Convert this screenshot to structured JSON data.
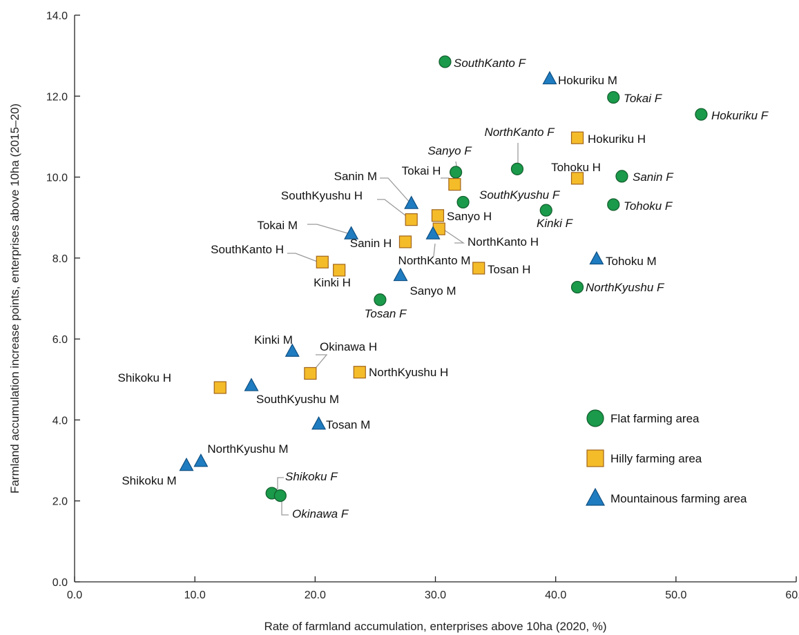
{
  "chart_data": {
    "type": "scatter",
    "xlabel": "Rate of farmland accumulation, enterprises above 10ha (2020, %)",
    "ylabel": "Farmland accumulation increase points, enterprises above 10ha (2015–20)",
    "xlim": [
      0,
      60
    ],
    "ylim": [
      0,
      14
    ],
    "xticks": [
      "0.0",
      "10.0",
      "20.0",
      "30.0",
      "40.0",
      "50.0",
      "60.0"
    ],
    "yticks": [
      "0.0",
      "2.0",
      "4.0",
      "6.0",
      "8.0",
      "10.0",
      "12.0",
      "14.0"
    ],
    "grid": false,
    "legend_position": "bottom-right",
    "series": [
      {
        "name": "Flat farming area",
        "marker": "circle",
        "color": "#1a9a4a",
        "label_style": "italic",
        "points": [
          {
            "label": "SouthKanto F",
            "x": 30.8,
            "y": 12.85
          },
          {
            "label": "Tokai F",
            "x": 44.8,
            "y": 11.97
          },
          {
            "label": "Hokuriku F",
            "x": 52.1,
            "y": 11.55
          },
          {
            "label": "NorthKanto F",
            "x": 36.8,
            "y": 10.2
          },
          {
            "label": "Sanyo F",
            "x": 31.7,
            "y": 10.12
          },
          {
            "label": "Sanin F",
            "x": 45.5,
            "y": 10.02
          },
          {
            "label": "SouthKyushu F",
            "x": 32.3,
            "y": 9.38
          },
          {
            "label": "Tohoku F",
            "x": 44.8,
            "y": 9.32
          },
          {
            "label": "Kinki F",
            "x": 39.2,
            "y": 9.18
          },
          {
            "label": "NorthKyushu F",
            "x": 41.8,
            "y": 7.28
          },
          {
            "label": "Tosan F",
            "x": 25.4,
            "y": 6.97
          },
          {
            "label": "Shikoku F",
            "x": 16.4,
            "y": 2.19
          },
          {
            "label": "Okinawa F",
            "x": 17.1,
            "y": 2.13
          }
        ]
      },
      {
        "name": "Hilly farming area",
        "marker": "square",
        "color": "#f5bc2a",
        "label_style": "normal",
        "points": [
          {
            "label": "Hokuriku H",
            "x": 41.8,
            "y": 10.97
          },
          {
            "label": "Tohoku H",
            "x": 41.8,
            "y": 9.97
          },
          {
            "label": "Tokai H",
            "x": 31.6,
            "y": 9.82
          },
          {
            "label": "Sanyo H",
            "x": 30.2,
            "y": 9.05
          },
          {
            "label": "SouthKyushu H",
            "x": 28.0,
            "y": 8.95
          },
          {
            "label": "NorthKanto H",
            "x": 30.3,
            "y": 8.72
          },
          {
            "label": "Sanin H",
            "x": 27.5,
            "y": 8.4
          },
          {
            "label": "SouthKanto H",
            "x": 20.6,
            "y": 7.9
          },
          {
            "label": "Tosan H",
            "x": 33.6,
            "y": 7.75
          },
          {
            "label": "Kinki H",
            "x": 22.0,
            "y": 7.7
          },
          {
            "label": "Okinawa H",
            "x": 19.6,
            "y": 5.15
          },
          {
            "label": "NorthKyushu H",
            "x": 23.7,
            "y": 5.18
          },
          {
            "label": "Shikoku H",
            "x": 12.1,
            "y": 4.8
          }
        ]
      },
      {
        "name": "Mountainous farming area",
        "marker": "triangle",
        "color": "#1f7cc0",
        "label_style": "normal",
        "points": [
          {
            "label": "Hokuriku M",
            "x": 39.5,
            "y": 12.43
          },
          {
            "label": "Sanin M",
            "x": 28.0,
            "y": 9.35
          },
          {
            "label": "NorthKanto M",
            "x": 29.8,
            "y": 8.6
          },
          {
            "label": "Tokai M",
            "x": 23.0,
            "y": 8.6
          },
          {
            "label": "Tohoku M",
            "x": 43.4,
            "y": 7.98
          },
          {
            "label": "Sanyo M",
            "x": 27.1,
            "y": 7.57
          },
          {
            "label": "Kinki M",
            "x": 18.1,
            "y": 5.7
          },
          {
            "label": "SouthKyushu M",
            "x": 14.7,
            "y": 4.85
          },
          {
            "label": "Tosan M",
            "x": 20.3,
            "y": 3.9
          },
          {
            "label": "NorthKyushu M",
            "x": 10.5,
            "y": 2.98
          },
          {
            "label": "Shikoku M",
            "x": 9.3,
            "y": 2.88
          }
        ]
      }
    ]
  }
}
